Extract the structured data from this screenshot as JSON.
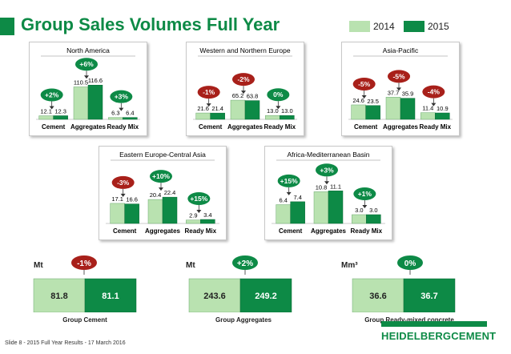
{
  "header": {
    "title": "Group Sales Volumes Full Year"
  },
  "legend": {
    "items": [
      {
        "label": "2014",
        "color": "#b9e2b0"
      },
      {
        "label": "2015",
        "color": "#0d8a46"
      }
    ]
  },
  "colors": {
    "y2014": "#b9e2b0",
    "y2015": "#0d8a46",
    "positive": "#0d8a46",
    "negative": "#a8201a",
    "neutral": "#0d8a46",
    "title": "#0d8a46"
  },
  "chart_data": [
    {
      "type": "bar",
      "title": "North America",
      "categories": [
        "Cement",
        "Aggregates",
        "Ready Mix"
      ],
      "series": [
        {
          "name": "2014",
          "values": [
            12.1,
            110.5,
            6.3
          ]
        },
        {
          "name": "2015",
          "values": [
            12.3,
            116.6,
            6.4
          ]
        }
      ],
      "changes": [
        "+2%",
        "+6%",
        "+3%"
      ],
      "ylim": [
        0,
        120
      ]
    },
    {
      "type": "bar",
      "title": "Western and Northern Europe",
      "categories": [
        "Cement",
        "Aggregates",
        "Ready Mix"
      ],
      "series": [
        {
          "name": "2014",
          "values": [
            21.6,
            65.2,
            13.0
          ]
        },
        {
          "name": "2015",
          "values": [
            21.4,
            63.8,
            13.0
          ]
        }
      ],
      "changes": [
        "-1%",
        "-2%",
        "0%"
      ],
      "ylim": [
        0,
        120
      ]
    },
    {
      "type": "bar",
      "title": "Asia-Pacific",
      "categories": [
        "Cement",
        "Aggregates",
        "Ready Mix"
      ],
      "series": [
        {
          "name": "2014",
          "values": [
            24.6,
            37.7,
            11.4
          ]
        },
        {
          "name": "2015",
          "values": [
            23.5,
            35.9,
            10.9
          ]
        }
      ],
      "changes": [
        "-5%",
        "-5%",
        "-4%"
      ],
      "ylim": [
        0,
        60
      ]
    },
    {
      "type": "bar",
      "title": "Eastern Europe-Central Asia",
      "categories": [
        "Cement",
        "Aggregates",
        "Ready Mix"
      ],
      "series": [
        {
          "name": "2014",
          "values": [
            17.1,
            20.4,
            2.9
          ]
        },
        {
          "name": "2015",
          "values": [
            16.6,
            22.4,
            3.4
          ]
        }
      ],
      "changes": [
        "-3%",
        "+10%",
        "+15%"
      ],
      "ylim": [
        0,
        30
      ]
    },
    {
      "type": "bar",
      "title": "Africa-Mediterranean Basin",
      "categories": [
        "Cement",
        "Aggregates",
        "Ready Mix"
      ],
      "series": [
        {
          "name": "2014",
          "values": [
            6.4,
            10.8,
            3.0
          ]
        },
        {
          "name": "2015",
          "values": [
            7.4,
            11.1,
            3.0
          ]
        }
      ],
      "changes": [
        "+15%",
        "+3%",
        "+1%"
      ],
      "ylim": [
        0,
        12
      ]
    },
    {
      "type": "bar",
      "title": "Group Cement",
      "unit": "Mt",
      "categories": [
        "Group Cement"
      ],
      "series": [
        {
          "name": "2014",
          "values": [
            81.8
          ]
        },
        {
          "name": "2015",
          "values": [
            81.1
          ]
        }
      ],
      "changes": [
        "-1%"
      ]
    },
    {
      "type": "bar",
      "title": "Group Aggregates",
      "unit": "Mt",
      "categories": [
        "Group Aggregates"
      ],
      "series": [
        {
          "name": "2014",
          "values": [
            243.6
          ]
        },
        {
          "name": "2015",
          "values": [
            249.2
          ]
        }
      ],
      "changes": [
        "+2%"
      ]
    },
    {
      "type": "bar",
      "title": "Group Ready-mixed concrete",
      "unit": "Mm³",
      "categories": [
        "Group Ready-mixed concrete"
      ],
      "series": [
        {
          "name": "2014",
          "values": [
            36.6
          ]
        },
        {
          "name": "2015",
          "values": [
            36.7
          ]
        }
      ],
      "changes": [
        "0%"
      ]
    }
  ],
  "footer": {
    "text": "Slide 8 - 2015 Full Year Results - 17 March 2016",
    "logo": "HEIDELBERGCEMENT"
  }
}
